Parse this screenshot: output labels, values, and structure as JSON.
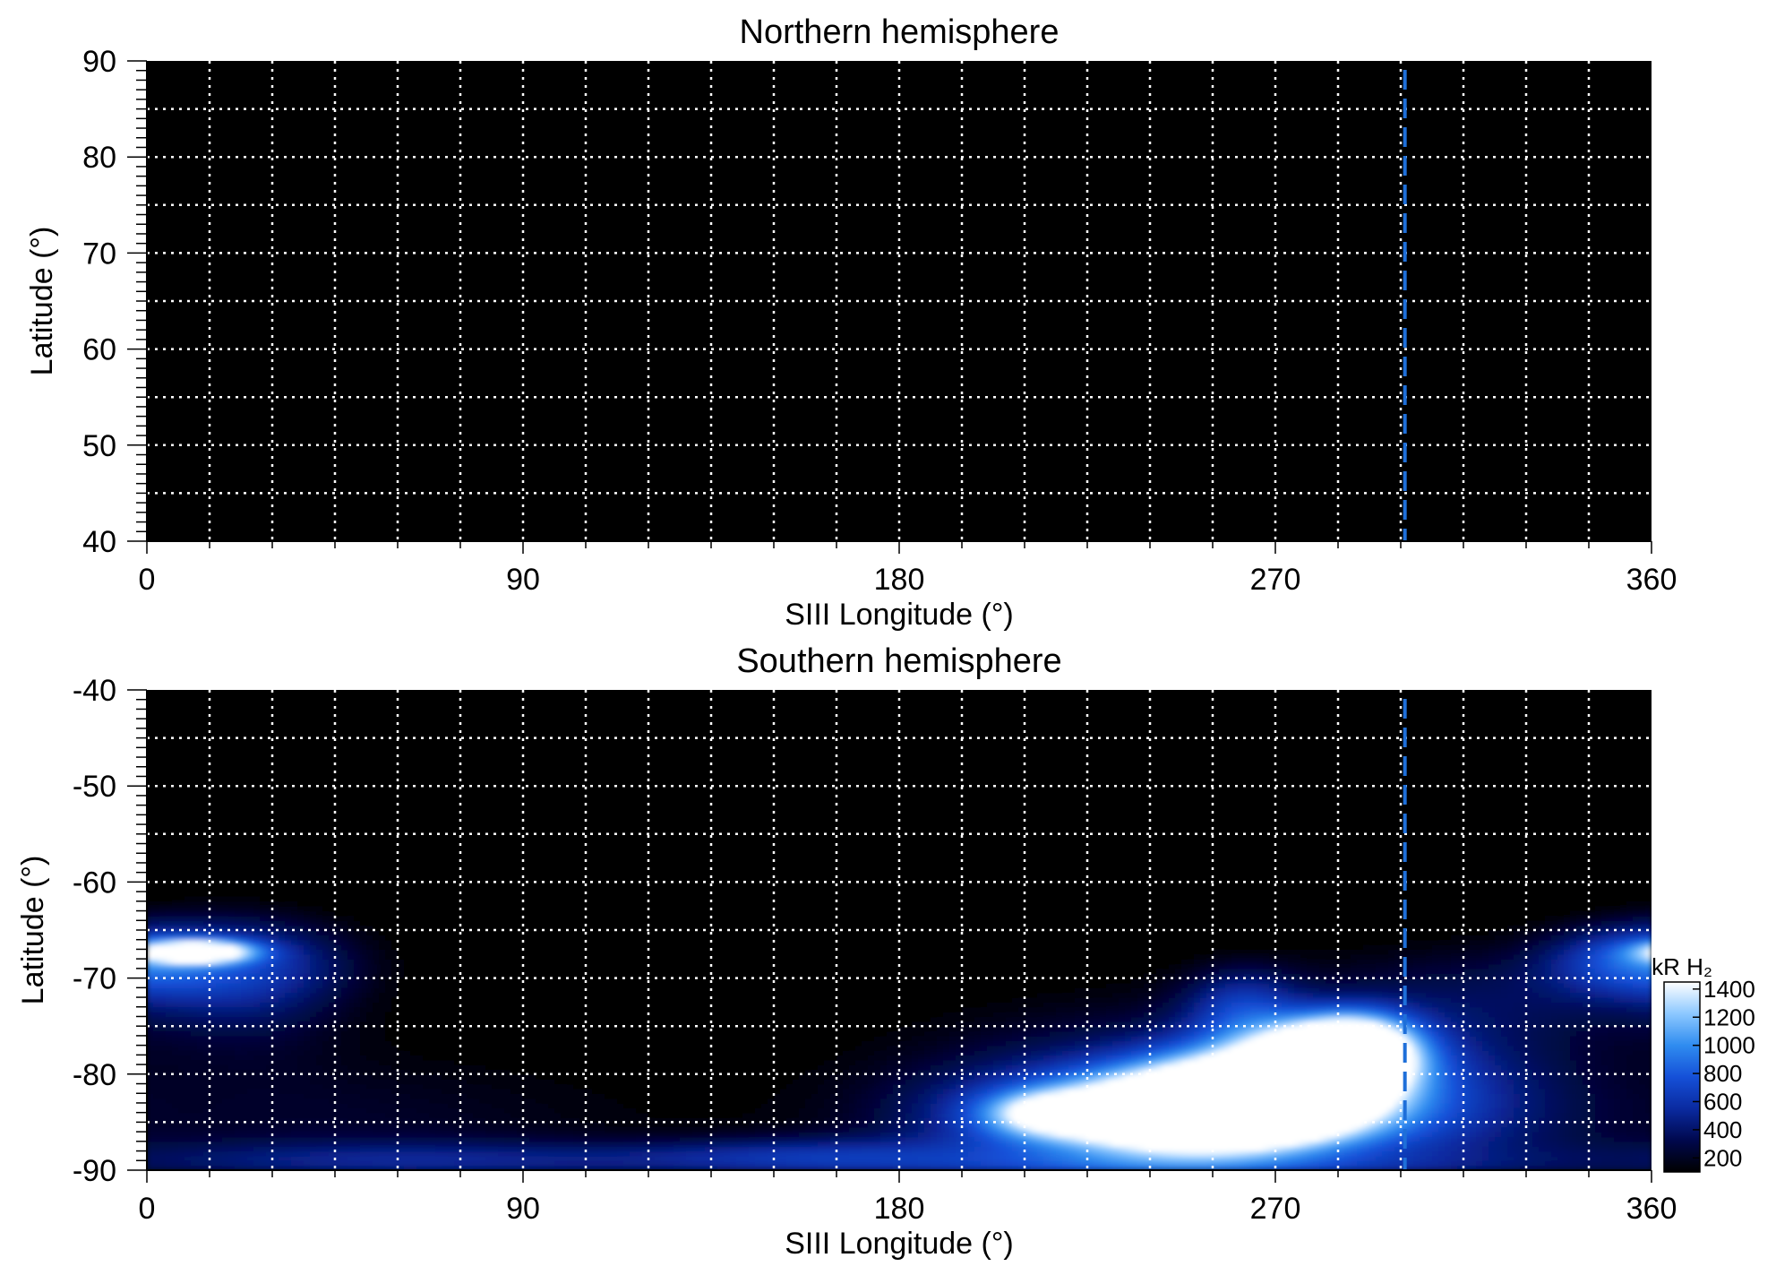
{
  "colors": {
    "background": "#000000",
    "grid": "#ffffff",
    "marker_line": "#1e6fd9",
    "colormap": [
      "#000000",
      "#00084d",
      "#0a2aa0",
      "#1550d8",
      "#2f8cf0",
      "#8cc8ff",
      "#ffffff"
    ]
  },
  "colorbar": {
    "label": "kR H₂",
    "ticks": [
      200,
      400,
      600,
      800,
      1000,
      1200,
      1400
    ],
    "range": [
      100,
      1450
    ]
  },
  "chart_data": [
    {
      "type": "heatmap",
      "title": "Northern hemisphere",
      "xlabel": "SIII Longitude (°)",
      "ylabel": "Latitude (°)",
      "xlim": [
        0,
        360
      ],
      "ylim": [
        40,
        90
      ],
      "xticks": [
        0,
        90,
        180,
        270,
        360
      ],
      "yticks": [
        40,
        50,
        60,
        70,
        80,
        90
      ],
      "grid_x_step": 15,
      "grid_y_step": 5,
      "grid": true,
      "marker_longitude": 301,
      "emission_blobs": []
    },
    {
      "type": "heatmap",
      "title": "Southern hemisphere",
      "xlabel": "SIII Longitude (°)",
      "ylabel": "Latitude (°)",
      "xlim": [
        0,
        360
      ],
      "ylim": [
        -90,
        -40
      ],
      "xticks": [
        0,
        90,
        180,
        270,
        360
      ],
      "yticks": [
        -90,
        -80,
        -70,
        -60,
        -50,
        -40
      ],
      "grid_x_step": 15,
      "grid_y_step": 5,
      "grid": true,
      "marker_longitude": 301,
      "emission_blobs": [
        {
          "lon": 20,
          "lat": -68,
          "dlon": 22,
          "dlat": 3.5,
          "intensity": 450
        },
        {
          "lon": 12,
          "lat": -67.2,
          "dlon": 9,
          "dlat": 0.8,
          "intensity": 1450
        },
        {
          "lon": 25,
          "lat": -72,
          "dlon": 18,
          "dlat": 5,
          "intensity": 200
        },
        {
          "lon": 45,
          "lat": -85,
          "dlon": 60,
          "dlat": 6,
          "intensity": 220
        },
        {
          "lon": 70,
          "lat": -89,
          "dlon": 60,
          "dlat": 1.5,
          "intensity": 360
        },
        {
          "lon": 160,
          "lat": -88.5,
          "dlon": 30,
          "dlat": 1.5,
          "intensity": 380
        },
        {
          "lon": 240,
          "lat": -83,
          "dlon": 45,
          "dlat": 7,
          "intensity": 500
        },
        {
          "lon": 262,
          "lat": -73,
          "dlon": 10,
          "dlat": 3,
          "intensity": 450
        },
        {
          "lon": 245,
          "lat": -84.5,
          "dlon": 32,
          "dlat": 3.2,
          "intensity": 1000
        },
        {
          "lon": 215,
          "lat": -84,
          "dlon": 10,
          "dlat": 1.5,
          "intensity": 700
        },
        {
          "lon": 270,
          "lat": -81,
          "dlon": 20,
          "dlat": 3,
          "intensity": 1450
        },
        {
          "lon": 255,
          "lat": -84,
          "dlon": 20,
          "dlat": 2.5,
          "intensity": 1450
        },
        {
          "lon": 283,
          "lat": -78,
          "dlon": 12,
          "dlat": 2.5,
          "intensity": 1450
        },
        {
          "lon": 290,
          "lat": -77,
          "dlon": 10,
          "dlat": 2.5,
          "intensity": 900
        },
        {
          "lon": 310,
          "lat": -82,
          "dlon": 25,
          "dlat": 7,
          "intensity": 330
        },
        {
          "lon": 330,
          "lat": -71,
          "dlon": 40,
          "dlat": 4,
          "intensity": 220
        },
        {
          "lon": 355,
          "lat": -68,
          "dlon": 14,
          "dlat": 2.5,
          "intensity": 480
        },
        {
          "lon": 240,
          "lat": -89.5,
          "dlon": 50,
          "dlat": 1,
          "intensity": 250
        }
      ]
    }
  ]
}
